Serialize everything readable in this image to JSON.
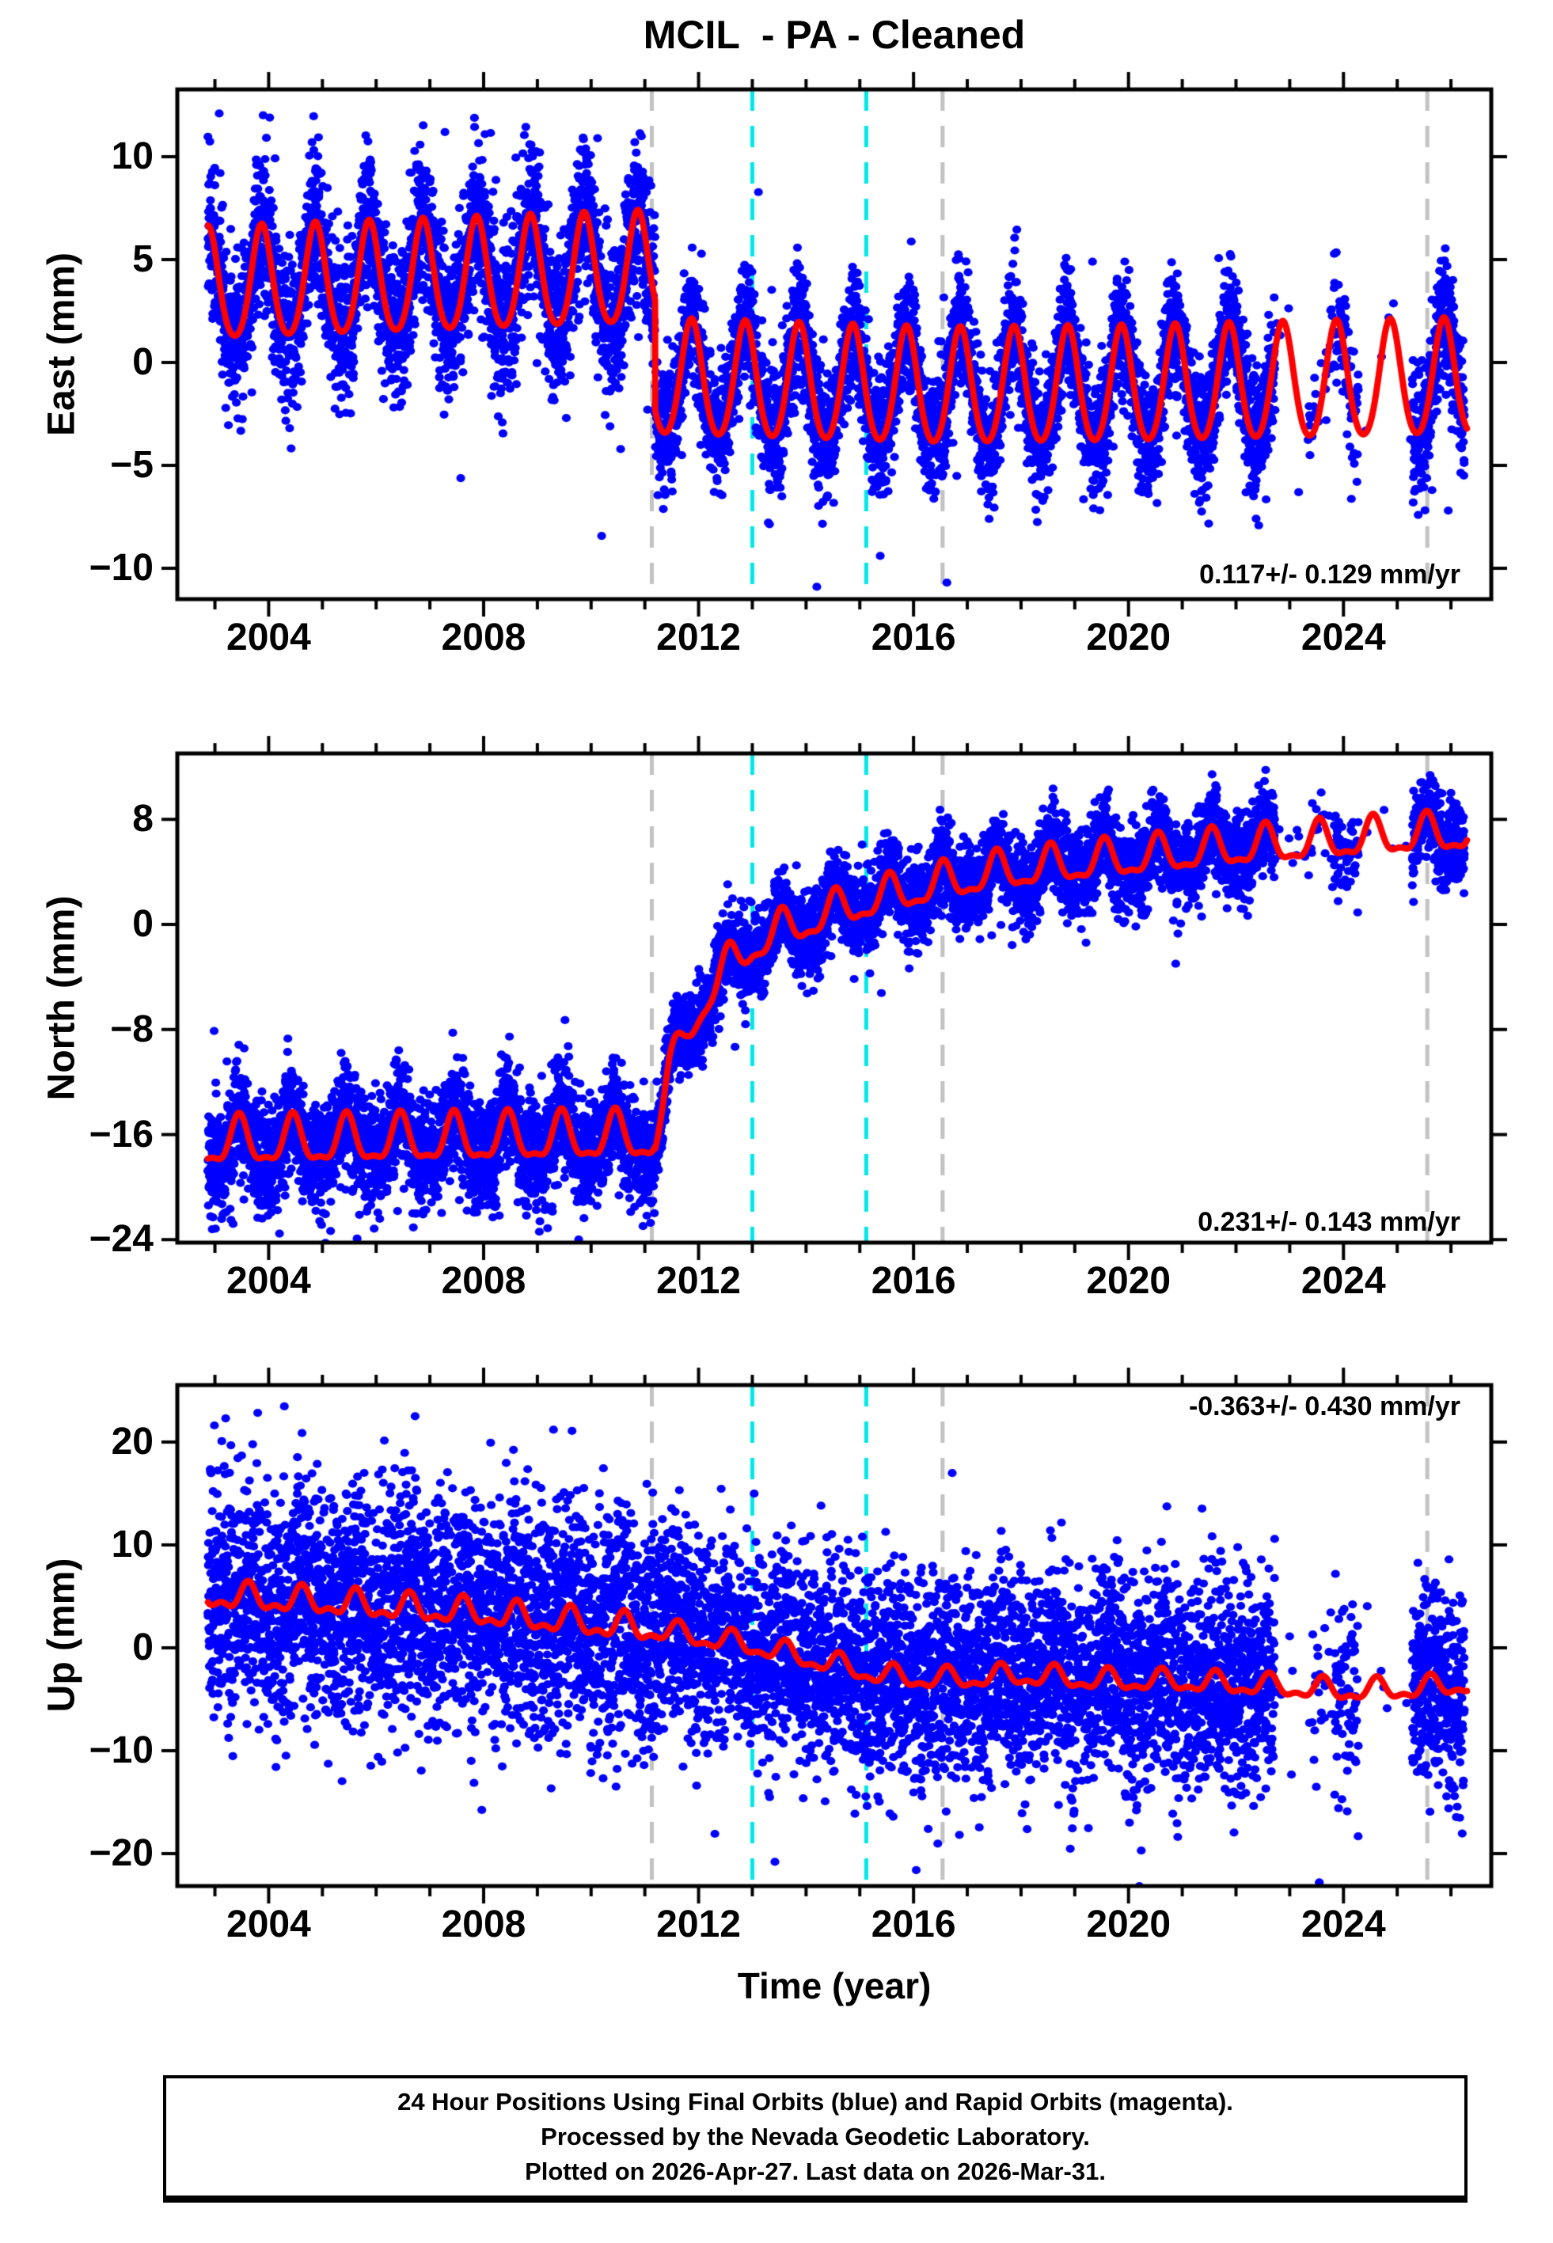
{
  "title": "MCIL  - PA - Cleaned",
  "chart_data": {
    "type": "scatter",
    "description": "GPS daily position time series (blue points) with seasonal+trend model fit (red line); vertical dashed lines mark events (gray: earthquakes, cyan: equipment/possible steps).",
    "x_axis": {
      "label": "Time (year)",
      "min": 2002.3,
      "max": 2026.75,
      "major_ticks": [
        2004,
        2008,
        2012,
        2016,
        2020,
        2024
      ],
      "minor_step": 1
    },
    "series_style": {
      "points_color": "#0000ff",
      "model_color": "#ff0000",
      "frame_color": "#000000",
      "gray_event_color": "#c2c2c2",
      "cyan_event_color": "#00e8e8"
    },
    "events": [
      {
        "year": 2011.13,
        "kind": "gray-dashed",
        "color": "#c2c2c2"
      },
      {
        "year": 2013.0,
        "kind": "cyan-dashed",
        "color": "#00e8e8"
      },
      {
        "year": 2015.12,
        "kind": "cyan-dashed",
        "color": "#00e8e8"
      },
      {
        "year": 2016.54,
        "kind": "gray-dashed",
        "color": "#c2c2c2"
      },
      {
        "year": 2025.56,
        "kind": "gray-dashed",
        "color": "#c2c2c2"
      }
    ],
    "sampling": {
      "start": 2002.87,
      "end": 2026.25,
      "per_year": 365,
      "seed": 7,
      "outlier_prob": 0.002,
      "outlier_scale": 2.6,
      "sparse_windows": [
        {
          "from": 2022.72,
          "to": 2023.28,
          "keep": 0.04
        },
        {
          "from": 2023.28,
          "to": 2023.82,
          "keep": 0.12
        },
        {
          "from": 2023.82,
          "to": 2024.28,
          "keep": 0.45
        },
        {
          "from": 2024.28,
          "to": 2025.28,
          "keep": 0.02
        }
      ]
    },
    "panels": [
      {
        "name": "East",
        "ylabel": "East (mm)",
        "rate_text": "0.117+/- 0.129 mm/yr",
        "rate_corner": "bottom-right",
        "ylim": [
          -11.5,
          13.27
        ],
        "yticks": [
          10,
          5,
          0,
          -5,
          -10
        ],
        "model_segments": [
          {
            "from": 2002.3,
            "to": 2011.19,
            "base": [
              [
                2002.3,
                3.55
              ],
              [
                2011.19,
                4.4
              ]
            ],
            "amp": 2.7,
            "amp2": 0.35,
            "phase": 0.87,
            "noise": 1.85
          },
          {
            "from": 2011.19,
            "to": 2026.75,
            "base": [
              [
                2011.19,
                -0.9
              ],
              [
                2016.5,
                -1.35
              ],
              [
                2020.0,
                -1.25
              ],
              [
                2026.75,
                -0.85
              ]
            ],
            "amp": 2.8,
            "amp2": 0.3,
            "phase": 0.87,
            "noise": 1.5
          }
        ],
        "extra_points": [
          [
            2003.08,
            12.1
          ],
          [
            2004.02,
            11.9
          ],
          [
            2007.28,
            11.2
          ],
          [
            2009.9,
            10.4
          ],
          [
            2010.12,
            10.9
          ],
          [
            2014.2,
            -10.9
          ],
          [
            2016.62,
            -10.7
          ],
          [
            2015.38,
            -9.4
          ],
          [
            2025.95,
            -7.2
          ]
        ]
      },
      {
        "name": "North",
        "ylabel": "North (mm)",
        "rate_text": "0.231+/- 0.143 mm/yr",
        "rate_corner": "bottom-right",
        "ylim": [
          -24.22,
          13.01
        ],
        "yticks": [
          8,
          0,
          -8,
          -16,
          -24
        ],
        "model_segments": [
          {
            "from": 2002.3,
            "to": 2011.19,
            "base": [
              [
                2002.3,
                -16.7
              ],
              [
                2011.19,
                -16.2
              ]
            ],
            "amp": 1.7,
            "amp2": 0.6,
            "phase": 0.45,
            "noise": 2.1
          },
          {
            "from": 2011.19,
            "to": 2026.75,
            "base": [
              [
                2011.19,
                -16.2
              ],
              [
                2011.45,
                -11.5
              ],
              [
                2011.8,
                -8.0
              ],
              [
                2012.2,
                -5.2
              ],
              [
                2012.6,
                -3.0
              ],
              [
                2013.0,
                -1.6
              ],
              [
                2013.5,
                -0.6
              ],
              [
                2014.0,
                0.2
              ],
              [
                2015.0,
                1.6
              ],
              [
                2016.0,
                2.6
              ],
              [
                2016.54,
                3.1
              ],
              [
                2017.5,
                3.9
              ],
              [
                2019.0,
                4.6
              ],
              [
                2020.0,
                5.0
              ],
              [
                2021.0,
                5.4
              ],
              [
                2022.0,
                5.8
              ],
              [
                2023.0,
                6.1
              ],
              [
                2024.0,
                6.4
              ],
              [
                2025.0,
                6.7
              ],
              [
                2025.56,
                6.8
              ],
              [
                2026.75,
                7.0
              ]
            ],
            "amp": 1.35,
            "amp2": 0.5,
            "phase": 0.55,
            "noise": 1.55
          }
        ],
        "extra_points": [
          [
            2002.95,
            -23.2
          ],
          [
            2003.3,
            -22.5
          ],
          [
            2025.6,
            9.6
          ],
          [
            2026.0,
            10.0
          ],
          [
            2026.1,
            9.2
          ]
        ]
      },
      {
        "name": "Up",
        "ylabel": "Up (mm)",
        "rate_text": "-0.363+/- 0.430 mm/yr",
        "rate_corner": "top-right",
        "ylim": [
          -23.15,
          25.54
        ],
        "yticks": [
          20,
          10,
          0,
          -10,
          -20
        ],
        "model_segments": [
          {
            "from": 2002.3,
            "to": 2011.19,
            "base": [
              [
                2002.3,
                5.2
              ],
              [
                2005.0,
                4.4
              ],
              [
                2008.0,
                3.3
              ],
              [
                2011.19,
                1.7
              ]
            ],
            "amp": 1.1,
            "amp2": 0.6,
            "phase": 0.62,
            "noise": 5.7
          },
          {
            "from": 2011.19,
            "to": 2026.75,
            "base": [
              [
                2011.19,
                1.7
              ],
              [
                2013.0,
                0.2
              ],
              [
                2014.5,
                -1.6
              ],
              [
                2015.5,
                -2.8
              ],
              [
                2016.54,
                -3.1
              ],
              [
                2018.0,
                -2.7
              ],
              [
                2019.5,
                -3.2
              ],
              [
                2021.0,
                -3.3
              ],
              [
                2022.5,
                -3.7
              ],
              [
                2024.0,
                -4.2
              ],
              [
                2025.3,
                -4.0
              ],
              [
                2026.75,
                -3.3
              ]
            ],
            "amp": 0.9,
            "amp2": 0.45,
            "phase": 0.62,
            "noise": 5.0
          }
        ],
        "extra_points": [
          [
            2013.42,
            -20.8
          ],
          [
            2016.05,
            -21.6
          ],
          [
            2023.55,
            -22.8
          ],
          [
            2003.2,
            22.3
          ],
          [
            2009.3,
            21.2
          ]
        ]
      }
    ]
  },
  "caption": {
    "lines": [
      "24 Hour Positions Using Final Orbits (blue) and Rapid Orbits (magenta).",
      "Processed by the Nevada Geodetic Laboratory.",
      "Plotted on 2026-Apr-27. Last data on 2026-Mar-31."
    ]
  }
}
